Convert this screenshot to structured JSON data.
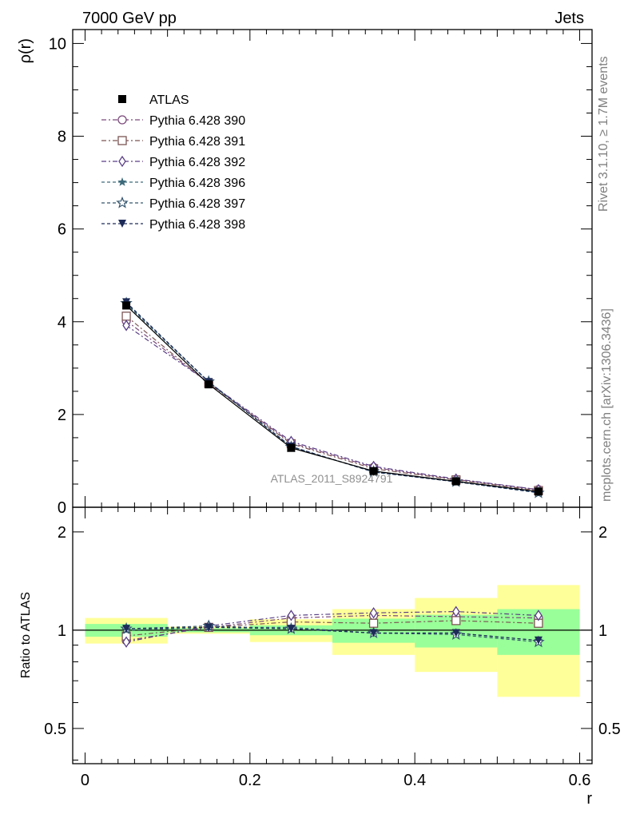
{
  "header": {
    "left": "7000 GeV pp",
    "right": "Jets"
  },
  "side_labels": {
    "rivet": "Rivet 3.1.10, ≥ 1.7M events",
    "mcplots": "mcplots.cern.ch [arXiv:1306.3436]"
  },
  "analysis_label": "ATLAS_2011_S8924791",
  "chart_data": [
    {
      "type": "line",
      "panel": "main",
      "ylabel": "ρ(r)",
      "xlabel": "",
      "xlim": [
        -0.015,
        0.615
      ],
      "ylim": [
        0,
        10.3
      ],
      "yticks": [
        0,
        2,
        4,
        6,
        8,
        10
      ],
      "ytick_labels": [
        "0",
        "2",
        "4",
        "6",
        "8",
        "10"
      ],
      "x": [
        0.05,
        0.15,
        0.25,
        0.35,
        0.45,
        0.55
      ],
      "legend_position": "top-left",
      "series": [
        {
          "name": "ATLAS",
          "marker": "filled-square",
          "color": "#000000",
          "dash": "",
          "values": [
            4.35,
            2.65,
            1.28,
            0.78,
            0.56,
            0.34
          ]
        },
        {
          "name": "Pythia 6.428 390",
          "marker": "open-circle",
          "color": "#7a4a7a",
          "dash": "6,3,2,3",
          "values": [
            4.02,
            2.68,
            1.39,
            0.86,
            0.6,
            0.38
          ]
        },
        {
          "name": "Pythia 6.428 391",
          "marker": "open-square",
          "color": "#7d5555",
          "dash": "6,3,2,3",
          "values": [
            4.12,
            2.67,
            1.37,
            0.83,
            0.59,
            0.36
          ]
        },
        {
          "name": "Pythia 6.428 392",
          "marker": "open-diamond",
          "color": "#5a3f86",
          "dash": "6,3,2,3",
          "values": [
            3.92,
            2.69,
            1.42,
            0.88,
            0.61,
            0.38
          ]
        },
        {
          "name": "Pythia 6.428 396",
          "marker": "filled-star",
          "color": "#3d6a7a",
          "dash": "4,3",
          "values": [
            4.38,
            2.7,
            1.31,
            0.76,
            0.55,
            0.32
          ]
        },
        {
          "name": "Pythia 6.428 397",
          "marker": "open-star",
          "color": "#34556e",
          "dash": "4,3",
          "values": [
            4.4,
            2.71,
            1.3,
            0.77,
            0.55,
            0.31
          ]
        },
        {
          "name": "Pythia 6.428 398",
          "marker": "filled-triangle-down",
          "color": "#1d2b58",
          "dash": "4,3",
          "values": [
            4.42,
            2.7,
            1.31,
            0.76,
            0.55,
            0.32
          ]
        }
      ]
    },
    {
      "type": "line",
      "panel": "ratio",
      "ylabel": "Ratio to ATLAS",
      "xlabel": "r",
      "xlim": [
        -0.015,
        0.615
      ],
      "ylim": [
        0.39,
        2.38
      ],
      "yscale": "log",
      "yticks": [
        0.5,
        1,
        2
      ],
      "ytick_labels": [
        "0.5",
        "1",
        "2"
      ],
      "xticks": [
        0,
        0.2,
        0.4,
        0.6
      ],
      "xtick_labels": [
        "0",
        "0.2",
        "0.4",
        "0.6"
      ],
      "x": [
        0.05,
        0.15,
        0.25,
        0.35,
        0.45,
        0.55
      ],
      "bands": {
        "bins": [
          [
            0.0,
            0.1
          ],
          [
            0.1,
            0.2
          ],
          [
            0.2,
            0.3
          ],
          [
            0.3,
            0.4
          ],
          [
            0.4,
            0.5
          ],
          [
            0.5,
            0.6
          ]
        ],
        "stat": {
          "color": "#99ff99",
          "low": [
            0.955,
            0.985,
            0.965,
            0.915,
            0.885,
            0.84
          ],
          "high": [
            1.045,
            1.015,
            1.035,
            1.085,
            1.115,
            1.16
          ]
        },
        "total": {
          "color": "#ffff99",
          "low": [
            0.91,
            0.975,
            0.92,
            0.84,
            0.745,
            0.625
          ],
          "high": [
            1.09,
            1.025,
            1.08,
            1.16,
            1.255,
            1.375
          ]
        }
      },
      "series": [
        {
          "name": "Pythia 6.428 390",
          "marker": "open-circle",
          "color": "#7a4a7a",
          "dash": "6,3,2,3",
          "values": [
            0.93,
            1.02,
            1.09,
            1.11,
            1.1,
            1.09
          ]
        },
        {
          "name": "Pythia 6.428 391",
          "marker": "open-square",
          "color": "#7d5555",
          "dash": "6,3,2,3",
          "values": [
            0.96,
            1.02,
            1.06,
            1.05,
            1.07,
            1.05
          ]
        },
        {
          "name": "Pythia 6.428 392",
          "marker": "open-diamond",
          "color": "#5a3f86",
          "dash": "6,3,2,3",
          "values": [
            0.92,
            1.03,
            1.11,
            1.13,
            1.14,
            1.11
          ]
        },
        {
          "name": "Pythia 6.428 396",
          "marker": "filled-star",
          "color": "#3d6a7a",
          "dash": "4,3",
          "values": [
            1.0,
            1.02,
            1.02,
            0.98,
            0.98,
            0.93
          ]
        },
        {
          "name": "Pythia 6.428 397",
          "marker": "open-star",
          "color": "#34556e",
          "dash": "4,3",
          "values": [
            1.01,
            1.03,
            1.01,
            0.98,
            0.97,
            0.92
          ]
        },
        {
          "name": "Pythia 6.428 398",
          "marker": "filled-triangle-down",
          "color": "#1d2b58",
          "dash": "4,3",
          "values": [
            1.01,
            1.02,
            1.01,
            0.98,
            0.98,
            0.93
          ]
        }
      ]
    }
  ]
}
